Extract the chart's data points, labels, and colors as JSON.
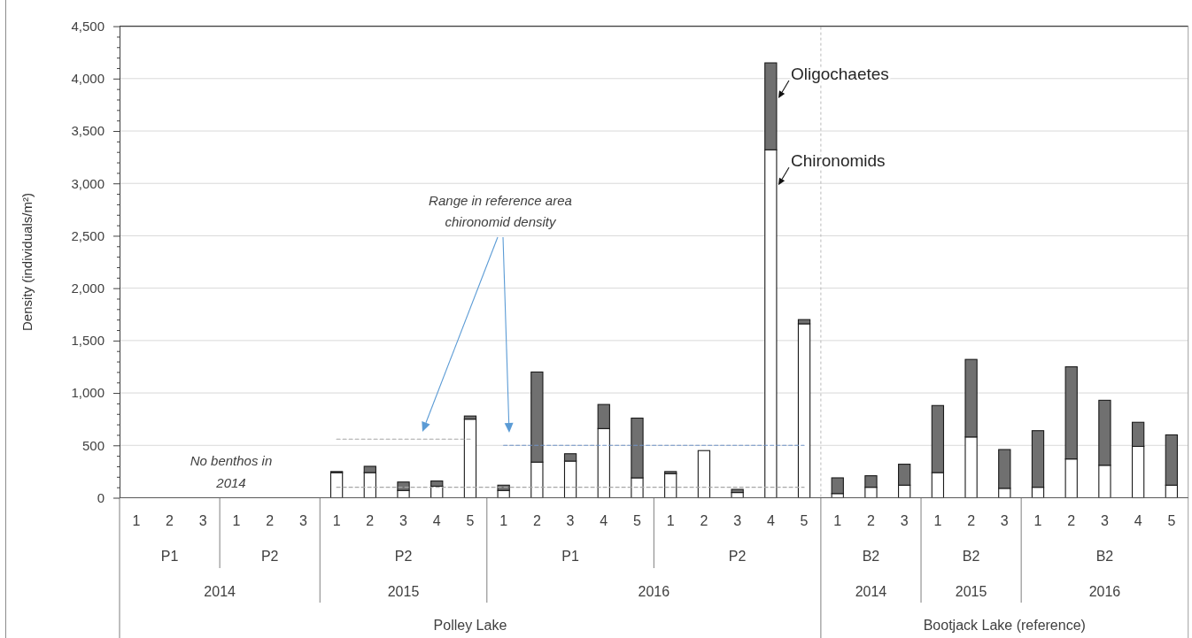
{
  "chart_data": {
    "type": "bar",
    "stacked": true,
    "ylabel": "Density (individuals/m²)",
    "categories": [
      "1",
      "2",
      "3",
      "1",
      "2",
      "3",
      "1",
      "2",
      "3",
      "4",
      "5",
      "1",
      "2",
      "3",
      "4",
      "5",
      "1",
      "2",
      "3",
      "4",
      "5",
      "1",
      "2",
      "3",
      "1",
      "2",
      "3",
      "1",
      "2",
      "3",
      "4",
      "5"
    ],
    "series": [
      {
        "name": "Chironomids",
        "color": "#ffffff",
        "values": [
          null,
          null,
          null,
          null,
          null,
          null,
          240,
          240,
          70,
          110,
          750,
          70,
          340,
          350,
          660,
          190,
          230,
          450,
          50,
          3320,
          1660,
          40,
          100,
          120,
          240,
          580,
          90,
          100,
          370,
          310,
          490,
          120
        ]
      },
      {
        "name": "Oligochaetes",
        "color": "#707070",
        "values": [
          null,
          null,
          null,
          null,
          null,
          null,
          10,
          60,
          80,
          50,
          30,
          50,
          860,
          70,
          230,
          570,
          20,
          0,
          30,
          830,
          40,
          150,
          110,
          200,
          640,
          740,
          370,
          540,
          880,
          620,
          230,
          480
        ]
      },
      {
        "type": "line",
        "color": "#a6a6a6",
        "line_style": "dashed",
        "values": [
          null,
          null,
          null,
          null,
          null,
          null,
          100,
          100,
          100,
          100,
          100,
          100,
          100,
          100,
          100,
          100,
          100,
          100,
          100,
          100,
          100,
          null,
          null,
          null,
          null,
          null,
          null,
          null,
          null,
          null,
          null,
          null
        ]
      },
      {
        "type": "line",
        "color": "#a6a6a6",
        "line_style": "dashed",
        "values": [
          null,
          null,
          null,
          null,
          null,
          null,
          560,
          560,
          560,
          560,
          560,
          null,
          null,
          null,
          null,
          null,
          null,
          null,
          null,
          null,
          null,
          null,
          null,
          null,
          null,
          null,
          null,
          null,
          null,
          null,
          null,
          null
        ]
      },
      {
        "type": "line",
        "color": "#6f93c6",
        "line_style": "dashed",
        "values": [
          null,
          null,
          null,
          null,
          null,
          null,
          null,
          null,
          null,
          null,
          null,
          500,
          500,
          500,
          500,
          500,
          500,
          500,
          500,
          500,
          500,
          null,
          null,
          null,
          null,
          null,
          null,
          null,
          null,
          null,
          null,
          null
        ]
      }
    ],
    "ylim": [
      0,
      4500
    ],
    "yticks": [
      0,
      {
        "value": 100,
        "label": null
      },
      {
        "value": 200,
        "label": null
      },
      {
        "value": 300,
        "label": null
      },
      {
        "value": 400,
        "label": null
      },
      500,
      {
        "value": 600,
        "label": null
      },
      {
        "value": 700,
        "label": null
      },
      {
        "value": 800,
        "label": null
      },
      {
        "value": 900,
        "label": null
      },
      {
        "value": 1000,
        "label": "1,000"
      },
      {
        "value": 1100,
        "label": null
      },
      {
        "value": 1200,
        "label": null
      },
      {
        "value": 1300,
        "label": null
      },
      {
        "value": 1400,
        "label": null
      },
      {
        "value": 1500,
        "label": "1,500"
      },
      {
        "value": 1600,
        "label": null
      },
      {
        "value": 1700,
        "label": null
      },
      {
        "value": 1800,
        "label": null
      },
      {
        "value": 1900,
        "label": null
      },
      {
        "value": 2000,
        "label": "2,000"
      },
      {
        "value": 2100,
        "label": null
      },
      {
        "value": 2200,
        "label": null
      },
      {
        "value": 2300,
        "label": null
      },
      {
        "value": 2400,
        "label": null
      },
      {
        "value": 2500,
        "label": "2,500"
      },
      {
        "value": 2600,
        "label": null
      },
      {
        "value": 2700,
        "label": null
      },
      {
        "value": 2800,
        "label": null
      },
      {
        "value": 2900,
        "label": null
      },
      {
        "value": 3000,
        "label": "3,000"
      },
      {
        "value": 3100,
        "label": null
      },
      {
        "value": 3200,
        "label": null
      },
      {
        "value": 3300,
        "label": null
      },
      {
        "value": 3400,
        "label": null
      },
      {
        "value": 3500,
        "label": "3,500"
      },
      {
        "value": 3600,
        "label": null
      },
      {
        "value": 3700,
        "label": null
      },
      {
        "value": 3800,
        "label": null
      },
      {
        "value": 3900,
        "label": null
      },
      {
        "value": 4000,
        "label": "4,000"
      },
      {
        "value": 4100,
        "label": null
      },
      {
        "value": 4200,
        "label": null
      },
      {
        "value": 4300,
        "label": null
      },
      {
        "value": 4400,
        "label": null
      },
      {
        "value": 4500,
        "label": "4,500"
      }
    ],
    "grid": "y",
    "annotations": [
      "No benthos in 2014",
      "Range in reference area chironomid density",
      "P1",
      "P2",
      "P2",
      "P1",
      "P2",
      "B2",
      "B2",
      "B2",
      "2014",
      "2015",
      "2016",
      "2014",
      "2015",
      "2016",
      "Polley Lake",
      "Bootjack Lake (reference)"
    ]
  }
}
